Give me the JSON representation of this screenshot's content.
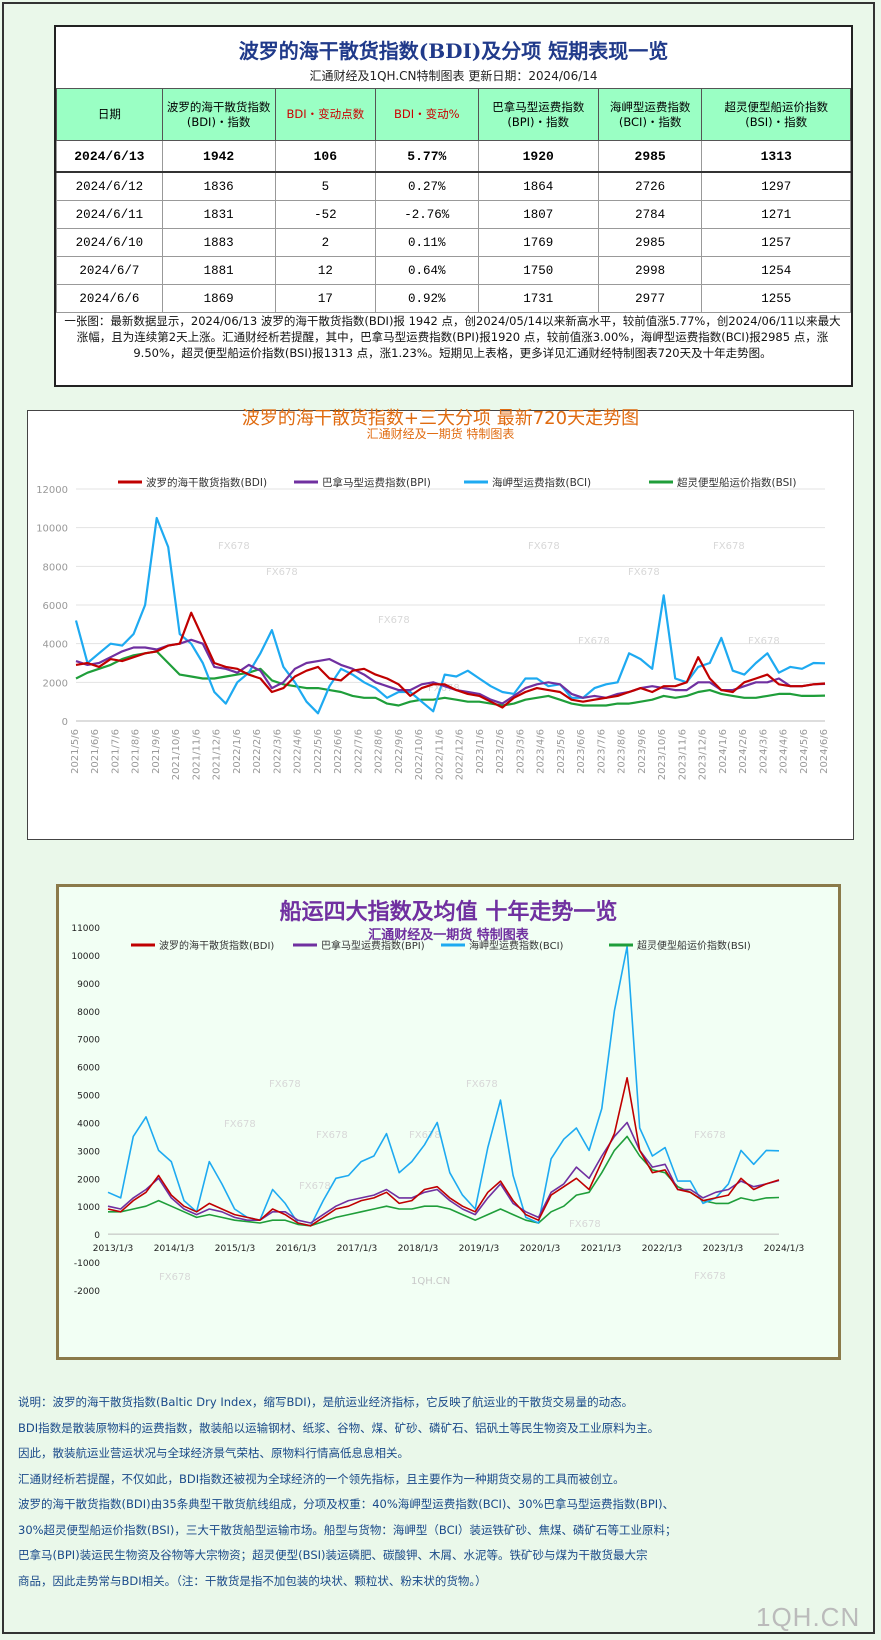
{
  "table": {
    "title": "波罗的海干散货指数(BDI)及分项  短期表现一览",
    "subtitle": "汇通财经及1QH.CN特制图表     更新日期：2024/06/14",
    "headers": [
      "日期",
      "波罗的海干散货指数\n(BDI)・指数",
      "BDI・变动点数",
      "BDI・变动%",
      "巴拿马型运费指数\n(BPI)・指数",
      "海岬型运费指数\n(BCI)・指数",
      "超灵便型船运价指数\n(BSI)・指数"
    ],
    "rows": [
      [
        "2024/6/13",
        "1942",
        "106",
        "5.77%",
        "1920",
        "2985",
        "1313"
      ],
      [
        "2024/6/12",
        "1836",
        "5",
        "0.27%",
        "1864",
        "2726",
        "1297"
      ],
      [
        "2024/6/11",
        "1831",
        "-52",
        "-2.76%",
        "1807",
        "2784",
        "1271"
      ],
      [
        "2024/6/10",
        "1883",
        "2",
        "0.11%",
        "1769",
        "2985",
        "1257"
      ],
      [
        "2024/6/7",
        "1881",
        "12",
        "0.64%",
        "1750",
        "2998",
        "1254"
      ],
      [
        "2024/6/6",
        "1869",
        "17",
        "0.92%",
        "1731",
        "2977",
        "1255"
      ]
    ],
    "description": "一张图：最新数据显示，2024/06/13 波罗的海干散货指数(BDI)报 1942 点，创2024/05/14以来新高水平，较前值涨5.77%，创2024/06/11以来最大涨幅，且为连续第2天上涨。汇通财经析若提醒，其中，巴拿马型运费指数(BPI)报1920 点，较前值涨3.00%，海岬型运费指数(BCI)报2985 点，涨9.50%，超灵便型船运价指数(BSI)报1313 点，涨1.23%。短期见上表格，更多详见汇通财经特制图表720天及十年走势图。"
  },
  "colors": {
    "bdi": "#c00000",
    "bpi": "#7030a0",
    "bci": "#1eaaf1",
    "bsi": "#1f9e3a"
  },
  "chart_data": [
    {
      "type": "line",
      "title": "波罗的海干散货指数+三大分项  最新720天走势图",
      "subtitle": "汇通财经及一期货  特制图表",
      "ylim": [
        0,
        12000
      ],
      "yticks": [
        "0",
        "2000",
        "4000",
        "6000",
        "8000",
        "10000",
        "12000"
      ],
      "x_tick_labels": [
        "2021/5/6",
        "2021/6/6",
        "2021/7/6",
        "2021/8/6",
        "2021/9/6",
        "2021/10/6",
        "2021/11/6",
        "2021/12/6",
        "2022/1/6",
        "2022/2/6",
        "2022/3/6",
        "2022/4/6",
        "2022/5/6",
        "2022/6/6",
        "2022/7/6",
        "2022/8/6",
        "2022/9/6",
        "2022/10/6",
        "2022/11/6",
        "2022/12/6",
        "2023/1/6",
        "2023/2/6",
        "2023/3/6",
        "2023/4/6",
        "2023/5/6",
        "2023/6/6",
        "2023/7/6",
        "2023/8/6",
        "2023/9/6",
        "2023/10/6",
        "2023/11/6",
        "2023/12/6",
        "2024/1/6",
        "2024/2/6",
        "2024/3/6",
        "2024/4/6",
        "2024/5/6",
        "2024/6/6"
      ],
      "watermark": "FX678",
      "series": [
        {
          "name": "波罗的海干散货指数(BDI)",
          "key": "bdi",
          "values": [
            2900,
            3000,
            2800,
            3200,
            3100,
            3300,
            3500,
            3600,
            3900,
            4000,
            5600,
            4300,
            3000,
            2800,
            2700,
            2400,
            2200,
            1500,
            1700,
            2300,
            2600,
            2800,
            2200,
            2100,
            2600,
            2700,
            2400,
            2200,
            1900,
            1300,
            1700,
            1900,
            1900,
            1600,
            1400,
            1300,
            1000,
            700,
            1200,
            1500,
            1700,
            1600,
            1500,
            1100,
            1000,
            1100,
            1200,
            1300,
            1500,
            1700,
            1500,
            1800,
            1800,
            2000,
            3300,
            2200,
            1600,
            1500,
            2000,
            2200,
            2400,
            1900,
            1800,
            1800,
            1900,
            1942
          ]
        },
        {
          "name": "巴拿马型运费指数(BPI)",
          "key": "bpi",
          "values": [
            3100,
            2900,
            3000,
            3300,
            3600,
            3800,
            3800,
            3700,
            3900,
            4000,
            4200,
            4000,
            2800,
            2700,
            2500,
            2900,
            2600,
            1700,
            2000,
            2700,
            3000,
            3100,
            3200,
            2900,
            2700,
            2400,
            2000,
            1800,
            1600,
            1600,
            1900,
            2000,
            1800,
            1600,
            1500,
            1400,
            1100,
            900,
            1300,
            1700,
            1900,
            2000,
            1900,
            1400,
            1200,
            1300,
            1200,
            1400,
            1500,
            1700,
            1800,
            1700,
            1600,
            1600,
            2000,
            2000,
            1600,
            1600,
            1800,
            2000,
            2000,
            2200,
            1800,
            1800,
            1900,
            1920
          ]
        },
        {
          "name": "海岬型运费指数(BCI)",
          "key": "bci",
          "values": [
            5200,
            3000,
            3500,
            4000,
            3900,
            4500,
            6000,
            10500,
            9000,
            4500,
            4000,
            3000,
            1500,
            900,
            2000,
            2500,
            3500,
            4700,
            2800,
            2000,
            1000,
            400,
            1800,
            2700,
            2400,
            2000,
            1700,
            1200,
            1500,
            1500,
            1000,
            500,
            2400,
            2300,
            2600,
            2200,
            1800,
            1500,
            1400,
            2200,
            2200,
            1800,
            1900,
            1200,
            1200,
            1700,
            1900,
            2000,
            3500,
            3200,
            2700,
            6500,
            2200,
            2000,
            2800,
            3000,
            4300,
            2600,
            2400,
            3000,
            3500,
            2500,
            2800,
            2700,
            3000,
            2985
          ]
        },
        {
          "name": "超灵便型船运价指数(BSI)",
          "key": "bsi",
          "values": [
            2200,
            2500,
            2700,
            2900,
            3200,
            3400,
            3500,
            3600,
            3000,
            2400,
            2300,
            2200,
            2200,
            2300,
            2400,
            2500,
            2700,
            2100,
            1900,
            1800,
            1700,
            1700,
            1600,
            1500,
            1300,
            1200,
            1200,
            900,
            800,
            1000,
            1100,
            1100,
            1200,
            1100,
            1000,
            1000,
            900,
            800,
            900,
            1100,
            1200,
            1300,
            1100,
            900,
            800,
            800,
            800,
            900,
            900,
            1000,
            1100,
            1300,
            1200,
            1300,
            1500,
            1600,
            1400,
            1300,
            1200,
            1200,
            1300,
            1400,
            1400,
            1300,
            1300,
            1313
          ]
        }
      ]
    },
    {
      "type": "line",
      "title": "船运四大指数及均值 十年走势一览",
      "subtitle": "汇通财经及一期货 特制图表",
      "ylim": [
        -2000,
        11000
      ],
      "yticks": [
        "-2000",
        "-1000",
        "0",
        "1000",
        "2000",
        "3000",
        "4000",
        "5000",
        "6000",
        "7000",
        "8000",
        "9000",
        "10000",
        "11000"
      ],
      "x_tick_labels": [
        "2013/1/3",
        "2014/1/3",
        "2015/1/3",
        "2016/1/3",
        "2017/1/3",
        "2018/1/3",
        "2019/1/3",
        "2020/1/3",
        "2021/1/3",
        "2022/1/3",
        "2023/1/3",
        "2024/1/3"
      ],
      "watermark": "FX678",
      "footer_watermark": "1QH.CN",
      "series": [
        {
          "name": "波罗的海干散货指数(BDI)",
          "key": "bdi",
          "values": [
            900,
            800,
            1200,
            1500,
            2100,
            1400,
            1000,
            800,
            1100,
            900,
            700,
            600,
            500,
            900,
            700,
            400,
            300,
            600,
            900,
            1000,
            1200,
            1300,
            1500,
            1100,
            1200,
            1600,
            1700,
            1300,
            1000,
            800,
            1500,
            1900,
            1200,
            700,
            500,
            1400,
            1700,
            2000,
            1600,
            2600,
            3600,
            5600,
            3000,
            2200,
            2300,
            1600,
            1500,
            1200,
            1300,
            1400,
            2000,
            1600,
            1800,
            1942
          ]
        },
        {
          "name": "巴拿马型运费指数(BPI)",
          "key": "bpi",
          "values": [
            1000,
            900,
            1300,
            1600,
            2000,
            1300,
            900,
            700,
            900,
            800,
            600,
            500,
            500,
            800,
            800,
            500,
            400,
            700,
            1000,
            1200,
            1300,
            1400,
            1600,
            1300,
            1300,
            1500,
            1600,
            1200,
            900,
            700,
            1300,
            1800,
            1100,
            800,
            600,
            1500,
            1800,
            2400,
            2000,
            2800,
            3500,
            4000,
            3000,
            2400,
            2500,
            1600,
            1600,
            1300,
            1500,
            1600,
            1900,
            1700,
            1800,
            1920
          ]
        },
        {
          "name": "海岬型运费指数(BCI)",
          "key": "bci",
          "values": [
            1500,
            1300,
            3500,
            4200,
            3000,
            2600,
            1200,
            800,
            2600,
            1800,
            900,
            600,
            500,
            1600,
            1100,
            400,
            300,
            1200,
            2000,
            2100,
            2600,
            2800,
            3600,
            2200,
            2600,
            3200,
            4000,
            2200,
            1400,
            900,
            3100,
            4800,
            2100,
            600,
            400,
            2700,
            3400,
            3800,
            3000,
            4500,
            8000,
            10300,
            3800,
            2800,
            3100,
            1900,
            1900,
            1100,
            1300,
            1800,
            3000,
            2500,
            3000,
            2985
          ]
        },
        {
          "name": "超灵便型船运价指数(BSI)",
          "key": "bsi",
          "values": [
            800,
            800,
            900,
            1000,
            1200,
            1000,
            800,
            600,
            700,
            600,
            500,
            450,
            400,
            500,
            500,
            350,
            300,
            450,
            600,
            700,
            800,
            900,
            1000,
            900,
            900,
            1000,
            1000,
            900,
            700,
            500,
            700,
            900,
            700,
            500,
            400,
            800,
            1000,
            1400,
            1500,
            2200,
            3000,
            3500,
            2800,
            2300,
            2200,
            1700,
            1500,
            1200,
            1100,
            1100,
            1300,
            1200,
            1300,
            1313
          ]
        }
      ]
    }
  ],
  "notes": [
    "说明：波罗的海干散货指数(Baltic Dry Index，缩写BDI)，是航运业经济指标，它反映了航运业的干散货交易量的动态。",
    "BDI指数是散装原物料的运费指数，散装船以运输钢材、纸浆、谷物、煤、矿砂、磷矿石、铝矾土等民生物资及工业原料为主。",
    "因此，散装航运业营运状况与全球经济景气荣枯、原物料行情高低息息相关。",
    "汇通财经析若提醒，不仅如此，BDI指数还被视为全球经济的一个领先指标，且主要作为一种期货交易的工具而被创立。",
    "波罗的海干散货指数(BDI)由35条典型干散货航线组成，分项及权重：40%海岬型运费指数(BCI)、30%巴拿马型运费指数(BPI)、",
    "30%超灵便型船运价指数(BSI)，三大干散货船型运输市场。船型与货物：海岬型（BCI）装运铁矿砂、焦煤、磷矿石等工业原料；",
    "巴拿马(BPI)装运民生物资及谷物等大宗物资；超灵便型(BSI)装运磷肥、碳酸钾、木屑、水泥等。铁矿砂与煤为干散货最大宗",
    "商品，因此走势常与BDI相关。（注：干散货是指不加包装的块状、颗粒状、粉末状的货物。）"
  ],
  "logo": "1QH.CN"
}
